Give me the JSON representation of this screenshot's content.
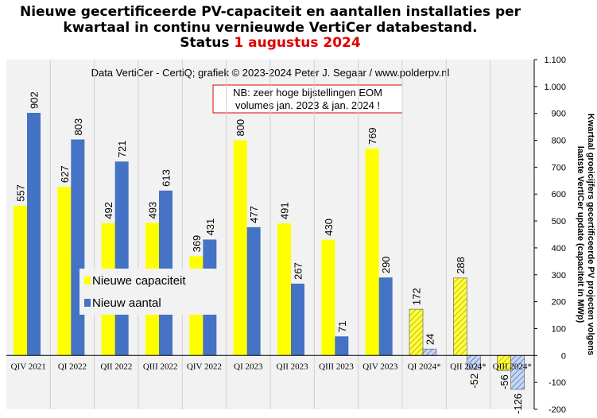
{
  "chart_data": {
    "type": "bar",
    "title": [
      "Nieuwe gecertificeerde PV-capaciteit en aantallen installaties per",
      "kwartaal in continu vernieuwde VertiCer databestand."
    ],
    "status_label": "Status",
    "status_date": "1 augustus 2024",
    "subtitle": "Data VertiCer - CertiQ; grafiek © 2023-2024 Peter J. Segaar / www.polderpv.nl",
    "annotation": [
      "NB: zeer hoge bijstellingen EOM",
      "volumes jan. 2023 & jan. 2024 !"
    ],
    "y_label": [
      "Kwartaal groeicijfers gecertificeerde PV projecten volgens",
      "laatste VertiCer update (capaciteit in MWp)"
    ],
    "categories": [
      "QIV 2021",
      "QI 2022",
      "QII 2022",
      "QIII 2022",
      "QIV 2022",
      "QI 2023",
      "QII 2023",
      "QIII 2023",
      "QIV 2023",
      "QI 2024*",
      "QII 2024*",
      "QIII 2024*"
    ],
    "hatched": [
      false,
      false,
      false,
      false,
      false,
      false,
      false,
      false,
      false,
      true,
      true,
      true
    ],
    "series": [
      {
        "name": "Nieuwe capaciteit",
        "color": "#ffff00",
        "values": [
          557,
          627,
          492,
          493,
          369,
          800,
          491,
          430,
          769,
          172,
          288,
          -56
        ]
      },
      {
        "name": "Nieuw aantal",
        "color": "#4472c4",
        "values": [
          902,
          803,
          721,
          613,
          431,
          477,
          267,
          71,
          290,
          24,
          -52,
          -126
        ]
      }
    ],
    "ylim": [
      -200,
      1100
    ],
    "yticks": [
      -200,
      -100,
      0,
      100,
      200,
      300,
      400,
      500,
      600,
      700,
      800,
      900,
      {
        "value": 1000,
        "label": "1.000"
      },
      {
        "value": 1100,
        "label": "1.100"
      }
    ],
    "grid": true,
    "legend": "lower-left"
  }
}
